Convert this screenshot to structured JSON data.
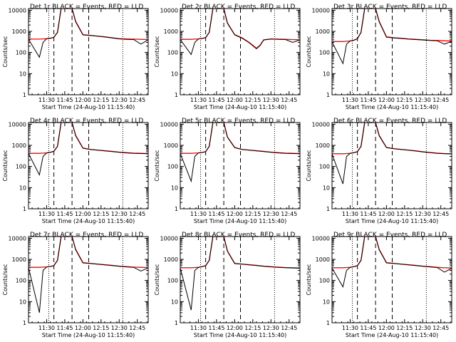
{
  "common": {
    "xlabel": "Start Time (24-Aug-10 11:15:40)",
    "ylabel": "Counts/sec",
    "xlim": [
      11.25,
      12.9
    ],
    "ylim": [
      1,
      12000
    ],
    "yscale": "log",
    "xtick_values": [
      11.5,
      11.75,
      12.0,
      12.25,
      12.5,
      12.75
    ],
    "xtick_labels": [
      "11:30",
      "11:45",
      "12:00",
      "12:15",
      "12:30",
      "12:45"
    ],
    "ytick_values": [
      1,
      10,
      100,
      1000,
      10000
    ],
    "ytick_labels": [
      "1",
      "10",
      "100",
      "1000",
      "10000"
    ],
    "dashed_lines_x": [
      11.6,
      11.85,
      12.08
    ],
    "dotted_lines_x": [
      11.53,
      12.55
    ],
    "colors": {
      "events": "#000000",
      "lld": "#ff0000",
      "frame": "#000000"
    },
    "grid": false,
    "legend": "none"
  },
  "chart_data": [
    {
      "type": "line",
      "title": "Det 1r BLACK = Events, RED = LLD",
      "dip": false,
      "series": [
        {
          "x": [
            11.25,
            11.4,
            11.45,
            11.5,
            11.55,
            11.6,
            11.65,
            11.7,
            11.75,
            11.8,
            11.85,
            11.9,
            12.0,
            12.1,
            12.2,
            12.3,
            12.4,
            12.5,
            12.6,
            12.7,
            12.8,
            12.9
          ],
          "values": [
            430,
            430,
            440,
            450,
            470,
            520,
            900,
            12000,
            12000,
            12000,
            12000,
            3000,
            700,
            650,
            600,
            550,
            500,
            450,
            440,
            430,
            420,
            410
          ]
        },
        {
          "x": [
            11.25,
            11.4,
            11.45,
            11.5,
            11.55,
            11.6,
            11.65,
            11.7,
            11.75,
            11.8,
            11.85,
            11.9,
            12.0,
            12.1,
            12.2,
            12.3,
            12.4,
            12.5,
            12.6,
            12.7,
            12.8,
            12.9
          ],
          "values": [
            420,
            60,
            300,
            450,
            470,
            520,
            900,
            12000,
            12000,
            12000,
            12000,
            2800,
            680,
            640,
            590,
            540,
            490,
            440,
            420,
            410,
            250,
            400
          ]
        }
      ]
    },
    {
      "type": "line",
      "title": "Det 2r BLACK = Events, RED = LLD",
      "dip": true,
      "series": [
        {
          "x": [
            11.25,
            11.4,
            11.45,
            11.5,
            11.55,
            11.6,
            11.65,
            11.7,
            11.75,
            11.8,
            11.85,
            11.9,
            12.0,
            12.1,
            12.2,
            12.3,
            12.35,
            12.4,
            12.5,
            12.6,
            12.7,
            12.8,
            12.9
          ],
          "values": [
            420,
            420,
            430,
            440,
            460,
            500,
            900,
            12000,
            12000,
            12000,
            12000,
            2500,
            700,
            500,
            300,
            160,
            220,
            400,
            440,
            430,
            420,
            410,
            400
          ]
        },
        {
          "x": [
            11.25,
            11.4,
            11.45,
            11.5,
            11.55,
            11.6,
            11.65,
            11.7,
            11.75,
            11.8,
            11.85,
            11.9,
            12.0,
            12.1,
            12.2,
            12.3,
            12.35,
            12.4,
            12.5,
            12.6,
            12.7,
            12.8,
            12.9
          ],
          "values": [
            410,
            80,
            300,
            440,
            460,
            500,
            900,
            12000,
            12000,
            12000,
            12000,
            2400,
            680,
            480,
            290,
            150,
            210,
            390,
            430,
            420,
            410,
            300,
            390
          ]
        }
      ]
    },
    {
      "type": "line",
      "title": "Det 3r BLACK = Events, RED = LLD",
      "dip": false,
      "series": [
        {
          "x": [
            11.25,
            11.4,
            11.45,
            11.5,
            11.55,
            11.6,
            11.65,
            11.7,
            11.75,
            11.8,
            11.85,
            11.9,
            12.0,
            12.1,
            12.2,
            12.3,
            12.4,
            12.5,
            12.6,
            12.7,
            12.8,
            12.9
          ],
          "values": [
            330,
            330,
            340,
            350,
            380,
            450,
            900,
            12000,
            12000,
            12000,
            12000,
            3000,
            550,
            500,
            470,
            440,
            420,
            400,
            380,
            370,
            360,
            350
          ]
        },
        {
          "x": [
            11.25,
            11.4,
            11.45,
            11.5,
            11.55,
            11.6,
            11.65,
            11.7,
            11.75,
            11.8,
            11.85,
            11.9,
            12.0,
            12.1,
            12.2,
            12.3,
            12.4,
            12.5,
            12.6,
            12.7,
            12.8,
            12.9
          ],
          "values": [
            320,
            30,
            250,
            350,
            380,
            450,
            900,
            12000,
            12000,
            12000,
            12000,
            2800,
            530,
            490,
            460,
            430,
            410,
            390,
            370,
            360,
            250,
            340
          ]
        }
      ]
    },
    {
      "type": "line",
      "title": "Det 4r BLACK = Events, RED = LLD",
      "dip": false,
      "series": [
        {
          "x": [
            11.25,
            11.4,
            11.45,
            11.5,
            11.55,
            11.6,
            11.65,
            11.7,
            11.75,
            11.8,
            11.85,
            11.9,
            12.0,
            12.1,
            12.2,
            12.3,
            12.4,
            12.5,
            12.6,
            12.7,
            12.8,
            12.9
          ],
          "values": [
            420,
            420,
            430,
            440,
            470,
            520,
            900,
            12000,
            12000,
            12000,
            12000,
            3000,
            750,
            650,
            600,
            560,
            520,
            480,
            450,
            430,
            420,
            410
          ]
        },
        {
          "x": [
            11.25,
            11.4,
            11.45,
            11.5,
            11.55,
            11.6,
            11.65,
            11.7,
            11.75,
            11.8,
            11.85,
            11.9,
            12.0,
            12.1,
            12.2,
            12.3,
            12.4,
            12.5,
            12.6,
            12.7,
            12.8,
            12.9
          ],
          "values": [
            410,
            40,
            300,
            440,
            470,
            520,
            900,
            12000,
            12000,
            12000,
            12000,
            2800,
            730,
            640,
            590,
            550,
            510,
            470,
            440,
            420,
            410,
            400
          ]
        }
      ]
    },
    {
      "type": "line",
      "title": "Det 5r BLACK = Events, RED = LLD",
      "dip": false,
      "series": [
        {
          "x": [
            11.25,
            11.4,
            11.45,
            11.5,
            11.55,
            11.6,
            11.65,
            11.7,
            11.75,
            11.8,
            11.85,
            11.9,
            12.0,
            12.1,
            12.2,
            12.3,
            12.4,
            12.5,
            12.6,
            12.7,
            12.8,
            12.9
          ],
          "values": [
            420,
            420,
            430,
            440,
            460,
            500,
            900,
            12000,
            12000,
            12000,
            12000,
            2500,
            800,
            650,
            600,
            560,
            520,
            480,
            450,
            430,
            420,
            410
          ]
        },
        {
          "x": [
            11.25,
            11.4,
            11.45,
            11.5,
            11.55,
            11.6,
            11.65,
            11.7,
            11.75,
            11.8,
            11.85,
            11.9,
            12.0,
            12.1,
            12.2,
            12.3,
            12.4,
            12.5,
            12.6,
            12.7,
            12.8,
            12.9
          ],
          "values": [
            410,
            20,
            300,
            440,
            460,
            500,
            900,
            12000,
            12000,
            12000,
            12000,
            2400,
            780,
            640,
            590,
            550,
            510,
            470,
            440,
            420,
            410,
            400
          ]
        }
      ]
    },
    {
      "type": "line",
      "title": "Det 6r BLACK = Events, RED = LLD",
      "dip": false,
      "series": [
        {
          "x": [
            11.25,
            11.4,
            11.45,
            11.5,
            11.55,
            11.6,
            11.65,
            11.7,
            11.75,
            11.8,
            11.85,
            11.9,
            12.0,
            12.1,
            12.2,
            12.3,
            12.4,
            12.5,
            12.6,
            12.7,
            12.8,
            12.9
          ],
          "values": [
            400,
            400,
            410,
            420,
            450,
            500,
            900,
            12000,
            12000,
            12000,
            12000,
            3000,
            800,
            700,
            650,
            600,
            550,
            500,
            460,
            430,
            410,
            400
          ]
        },
        {
          "x": [
            11.25,
            11.4,
            11.45,
            11.5,
            11.55,
            11.6,
            11.65,
            11.7,
            11.75,
            11.8,
            11.85,
            11.9,
            12.0,
            12.1,
            12.2,
            12.3,
            12.4,
            12.5,
            12.6,
            12.7,
            12.8,
            12.9
          ],
          "values": [
            390,
            15,
            300,
            420,
            450,
            500,
            900,
            12000,
            12000,
            12000,
            12000,
            2800,
            780,
            690,
            640,
            590,
            540,
            490,
            450,
            420,
            400,
            390
          ]
        }
      ]
    },
    {
      "type": "line",
      "title": "Det 7r BLACK = Events, RED = LLD",
      "dip": false,
      "series": [
        {
          "x": [
            11.25,
            11.4,
            11.45,
            11.5,
            11.55,
            11.6,
            11.65,
            11.7,
            11.75,
            11.8,
            11.85,
            11.9,
            12.0,
            12.1,
            12.2,
            12.3,
            12.4,
            12.5,
            12.6,
            12.7,
            12.8,
            12.9
          ],
          "values": [
            420,
            420,
            430,
            440,
            460,
            500,
            900,
            12000,
            12000,
            12000,
            12000,
            3000,
            700,
            650,
            600,
            560,
            520,
            480,
            450,
            430,
            420,
            410
          ]
        },
        {
          "x": [
            11.25,
            11.4,
            11.45,
            11.5,
            11.55,
            11.6,
            11.65,
            11.7,
            11.75,
            11.8,
            11.85,
            11.9,
            12.0,
            12.1,
            12.2,
            12.3,
            12.4,
            12.5,
            12.6,
            12.7,
            12.8,
            12.9
          ],
          "values": [
            410,
            3,
            300,
            440,
            460,
            500,
            900,
            12000,
            12000,
            12000,
            12000,
            2800,
            680,
            640,
            590,
            550,
            510,
            470,
            440,
            420,
            280,
            400
          ]
        }
      ]
    },
    {
      "type": "line",
      "title": "Det 8r BLACK = Events, RED = LLD",
      "dip": false,
      "series": [
        {
          "x": [
            11.25,
            11.4,
            11.45,
            11.5,
            11.55,
            11.6,
            11.65,
            11.7,
            11.75,
            11.8,
            11.85,
            11.9,
            12.0,
            12.1,
            12.2,
            12.3,
            12.4,
            12.5,
            12.6,
            12.7,
            12.8,
            12.9
          ],
          "values": [
            400,
            400,
            410,
            420,
            450,
            500,
            900,
            12000,
            12000,
            12000,
            12000,
            2500,
            650,
            600,
            560,
            520,
            480,
            450,
            430,
            410,
            400,
            390
          ]
        },
        {
          "x": [
            11.25,
            11.4,
            11.45,
            11.5,
            11.55,
            11.6,
            11.65,
            11.7,
            11.75,
            11.8,
            11.85,
            11.9,
            12.0,
            12.1,
            12.2,
            12.3,
            12.4,
            12.5,
            12.6,
            12.7,
            12.8,
            12.9
          ],
          "values": [
            390,
            4,
            300,
            420,
            450,
            500,
            900,
            12000,
            12000,
            12000,
            12000,
            2400,
            630,
            590,
            550,
            510,
            470,
            440,
            420,
            400,
            390,
            380
          ]
        }
      ]
    },
    {
      "type": "line",
      "title": "Det 9r BLACK = Events, RED = LLD",
      "dip": false,
      "series": [
        {
          "x": [
            11.25,
            11.4,
            11.45,
            11.5,
            11.55,
            11.6,
            11.65,
            11.7,
            11.75,
            11.8,
            11.85,
            11.9,
            12.0,
            12.1,
            12.2,
            12.3,
            12.4,
            12.5,
            12.6,
            12.7,
            12.8,
            12.9
          ],
          "values": [
            400,
            400,
            410,
            420,
            450,
            500,
            900,
            12000,
            12000,
            12000,
            12000,
            3000,
            700,
            650,
            600,
            560,
            520,
            480,
            450,
            420,
            400,
            390
          ]
        },
        {
          "x": [
            11.25,
            11.4,
            11.45,
            11.5,
            11.55,
            11.6,
            11.65,
            11.7,
            11.75,
            11.8,
            11.85,
            11.9,
            12.0,
            12.1,
            12.2,
            12.3,
            12.4,
            12.5,
            12.6,
            12.7,
            12.8,
            12.9
          ],
          "values": [
            390,
            50,
            300,
            420,
            450,
            500,
            900,
            12000,
            12000,
            12000,
            12000,
            2800,
            680,
            640,
            590,
            550,
            510,
            470,
            440,
            410,
            250,
            380
          ]
        }
      ]
    }
  ]
}
